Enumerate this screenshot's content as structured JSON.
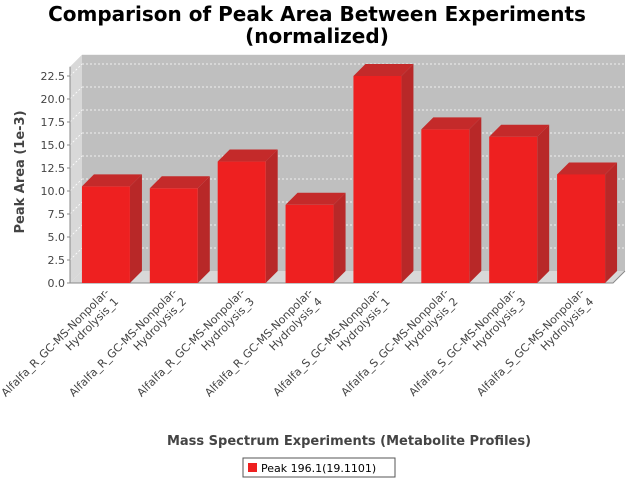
{
  "chart_data": {
    "type": "bar",
    "title_line1": "Comparison of Peak Area Between Experiments",
    "title_line2": "(normalized)",
    "xlabel": "Mass Spectrum Experiments (Metabolite Profiles)",
    "ylabel": "Peak Area (1e-3)",
    "ylim": [
      0,
      23.5
    ],
    "yticks": [
      "0.0",
      "2.5",
      "5.0",
      "7.5",
      "10.0",
      "12.5",
      "15.0",
      "17.5",
      "20.0",
      "22.5"
    ],
    "categories": [
      [
        "Alfalfa_R_GC-MS-Nonpolar-",
        "Hydrolysis_1"
      ],
      [
        "Alfalfa_R_GC-MS-Nonpolar-",
        "Hydrolysis_2"
      ],
      [
        "Alfalfa_R_GC-MS-Nonpolar-",
        "Hydrolysis_3"
      ],
      [
        "Alfalfa_R_GC-MS-Nonpolar-",
        "Hydrolysis_4"
      ],
      [
        "Alfalfa_S_GC-MS-Nonpolar-",
        "Hydrolysis_1"
      ],
      [
        "Alfalfa_S_GC-MS-Nonpolar-",
        "Hydrolysis_2"
      ],
      [
        "Alfalfa_S_GC-MS-Nonpolar-",
        "Hydrolysis_3"
      ],
      [
        "Alfalfa_S_GC-MS-Nonpolar-",
        "Hydrolysis_4"
      ]
    ],
    "series": [
      {
        "name": "Peak 196.1(19.1101)",
        "color": "#ee2020",
        "values": [
          10.5,
          10.3,
          13.2,
          8.5,
          22.5,
          16.7,
          15.9,
          11.8
        ]
      }
    ],
    "grid": true,
    "legend_position": "bottom-center",
    "plot_background": "#bfbfbf"
  }
}
